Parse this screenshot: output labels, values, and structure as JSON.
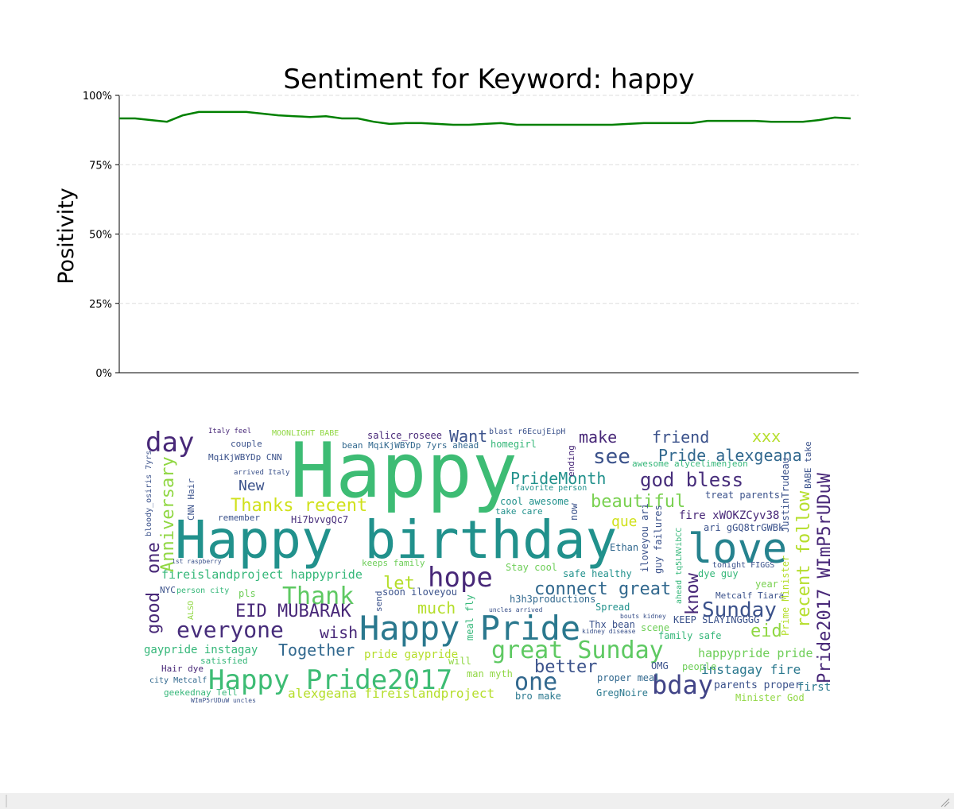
{
  "chart_data": {
    "type": "line",
    "title": "Sentiment for Keyword: happy",
    "y_label": "Positivity",
    "color": "#008000",
    "values": [
      91.7,
      91.7,
      91.1,
      90.5,
      92.8,
      94,
      94,
      94,
      94,
      93.4,
      92.8,
      92.5,
      92.2,
      92.5,
      91.7,
      91.7,
      90.5,
      89.7,
      90,
      90,
      89.7,
      89.4,
      89.4,
      89.7,
      90,
      89.4,
      89.4,
      89.4,
      89.4,
      89.4,
      89.4,
      89.4,
      89.7,
      90,
      90,
      90,
      90,
      90.8,
      90.8,
      90.8,
      90.8,
      90.5,
      90.5,
      90.5,
      91.1,
      92,
      91.7
    ],
    "ylim": [
      0,
      100
    ],
    "yticks": [
      {
        "value": 0,
        "label": "0%"
      },
      {
        "value": 25,
        "label": "25%"
      },
      {
        "value": 50,
        "label": "50%"
      },
      {
        "value": 75,
        "label": "75%"
      },
      {
        "value": 100,
        "label": "100%"
      }
    ],
    "grid": true
  },
  "word_cloud": {
    "words": [
      "Happy",
      "Happy birthday",
      "love",
      "Happy Pride",
      "Happy Pride2017",
      "great Sunday",
      "hope",
      "day",
      "bday",
      "one",
      "everyone",
      "Thank",
      "EID MUBARAK",
      "connect great",
      "Sunday",
      "see",
      "god bless",
      "beautiful",
      "Pride alexgeana",
      "friend",
      "make",
      "Want",
      "xxx",
      "PrideMonth",
      "Thanks recent",
      "New",
      "fireislandproject happypride",
      "let",
      "much",
      "wish",
      "Together",
      "better",
      "pride gaypride",
      "alexgeana fireislandproject",
      "gaypride instagay",
      "eid",
      "happypride pride",
      "instagay fire",
      "parents proper",
      "first",
      "Minister God",
      "GregNoire",
      "proper meal",
      "bro make",
      "man myth",
      "will",
      "OMG",
      "people",
      "family safe",
      "scene",
      "KEEP SLAYINGGGG",
      "Metcalf Tiara",
      "year",
      "dye guy",
      "tonight FIGGS",
      "ari gGQ8trGWBk",
      "fire xWOKZCyv38",
      "treat parents",
      "awesome alycelimenjeon",
      "Ethan",
      "que",
      "safe healthy",
      "Stay cool",
      "h3h3productions",
      "Spread",
      "Thx bean",
      "cool awesome",
      "take care",
      "favorite person",
      "homegirl",
      "blast r6EcujEipH",
      "salice_roseee",
      "MOONLIGHT BABE",
      "bean MqiKjWBYDp 7yrs ahead",
      "Italy feel",
      "couple",
      "MqiKjWBYDp CNN",
      "arrived Italy",
      "remember",
      "Hi7bvvgQc7",
      "keeps family",
      "soon iloveyou",
      "pls",
      "NYC",
      "person city",
      "Hair dye",
      "satisfied",
      "city Metcalf",
      "geekednay Tell",
      "WImP5rUDuW uncles",
      "1st raspberry",
      "uncles arrived",
      "kidney disease",
      "bouts kidney",
      "Anniversary",
      "good",
      "one",
      "Pride2017 WImP5rUDuW",
      "recent follow",
      "Prime Minister",
      "JustinTrudeau",
      "know",
      "meal fly",
      "send",
      "now",
      "ending",
      "guy failures",
      "iloveyou ari",
      "CNN Hair",
      "bloody_osiris 7yrs",
      "ALSO",
      "BABE take",
      "ahead tq5LNVibCC"
    ]
  }
}
